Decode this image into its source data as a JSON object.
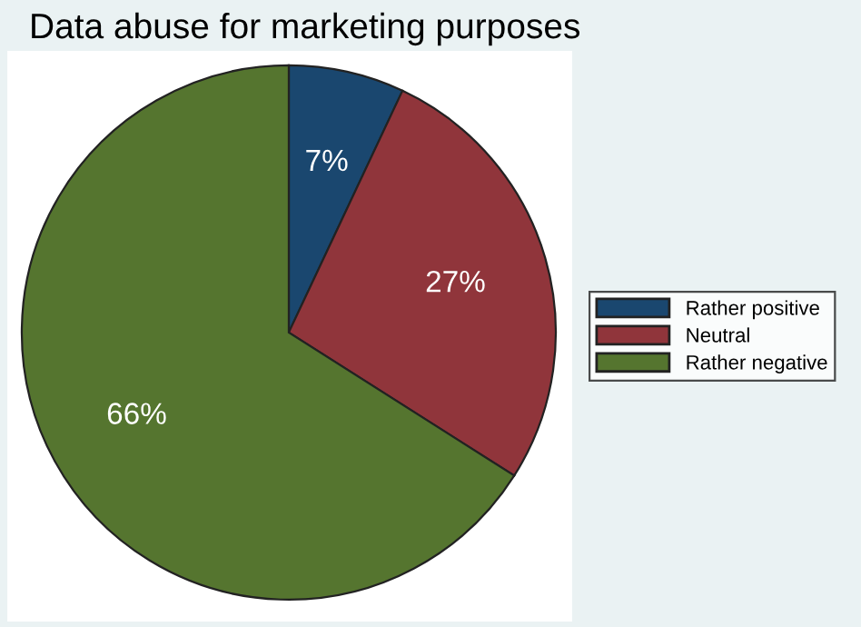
{
  "chart_data": {
    "type": "pie",
    "title": "Data abuse for marketing purposes",
    "categories": [
      "Rather positive",
      "Neutral",
      "Rather negative"
    ],
    "values": [
      7,
      27,
      66
    ],
    "colors": [
      "#1a476f",
      "#90353b",
      "#55752f"
    ],
    "value_labels": [
      "7%",
      "27%",
      "66%"
    ],
    "legend": "right"
  }
}
